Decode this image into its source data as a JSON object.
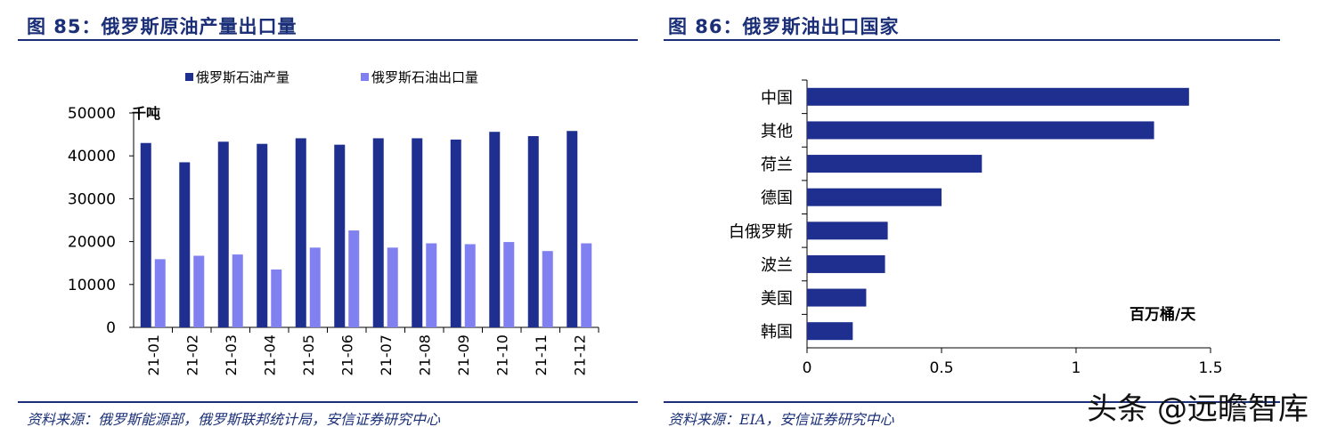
{
  "left": {
    "figure_title": "图 85：俄罗斯原油产量出口量",
    "source": "资料来源：俄罗斯能源部，俄罗斯联邦统计局，安信证券研究中心"
  },
  "right": {
    "figure_title": "图 86：俄罗斯油出口国家",
    "source": "资料来源：EIA，安信证券研究中心"
  },
  "watermark": "头条 @远瞻智库",
  "colors": {
    "dark_bar": "#1f2f8f",
    "light_bar": "#8080f0",
    "title": "#1a2f78"
  },
  "chart_data": [
    {
      "type": "bar",
      "unit_label": "千吨",
      "categories": [
        "21-01",
        "21-02",
        "21-03",
        "21-04",
        "21-05",
        "21-06",
        "21-07",
        "21-08",
        "21-09",
        "21-10",
        "21-11",
        "21-12"
      ],
      "series": [
        {
          "name": "俄罗斯石油产量",
          "color": "#1f2f8f",
          "values": [
            43000,
            38500,
            43300,
            42800,
            44100,
            42600,
            44100,
            44100,
            43800,
            45600,
            44600,
            45800
          ]
        },
        {
          "name": "俄罗斯石油出口量",
          "color": "#8080f0",
          "values": [
            15900,
            16700,
            17000,
            13500,
            18600,
            22600,
            18600,
            19600,
            19400,
            19900,
            17800,
            19600
          ]
        }
      ],
      "ylim": [
        0,
        50000
      ],
      "yticks": [
        "0",
        "10000",
        "20000",
        "30000",
        "40000",
        "50000"
      ],
      "legend": "top"
    },
    {
      "type": "bar",
      "orientation": "horizontal",
      "unit_label": "百万桶/天",
      "categories": [
        "中国",
        "其他",
        "荷兰",
        "德国",
        "白俄罗斯",
        "波兰",
        "美国",
        "韩国"
      ],
      "values": [
        1.42,
        1.29,
        0.65,
        0.5,
        0.3,
        0.29,
        0.22,
        0.17
      ],
      "color": "#1f2f8f",
      "xlim": [
        0,
        1.5
      ],
      "xticks": [
        "0",
        "0.5",
        "1",
        "1.5"
      ]
    }
  ]
}
